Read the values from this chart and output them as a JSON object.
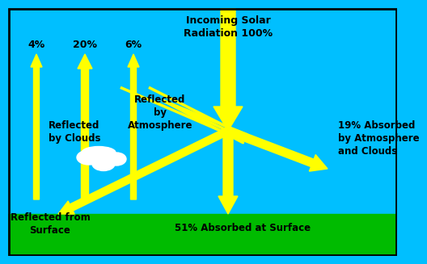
{
  "bg_color": "#00BFFF",
  "ground_color": "#00BB00",
  "arrow_color": "#FFFF00",
  "text_color": "#000000",
  "fig_width": 4.81,
  "fig_height": 3.07,
  "title": "Incoming Solar\nRadiation 100%",
  "labels": {
    "pct4": "4%",
    "pct20": "20%",
    "pct6": "6%",
    "reflected_atmosphere": "Reflected\nby\nAtmosphere",
    "reflected_clouds": "Reflected\nby Clouds",
    "pct19": "19% Absorbed\nby Atmosphere\nand Clouds",
    "reflected_surface": "Reflected from\nSurface",
    "pct51": "51% Absorbed at Surface"
  }
}
